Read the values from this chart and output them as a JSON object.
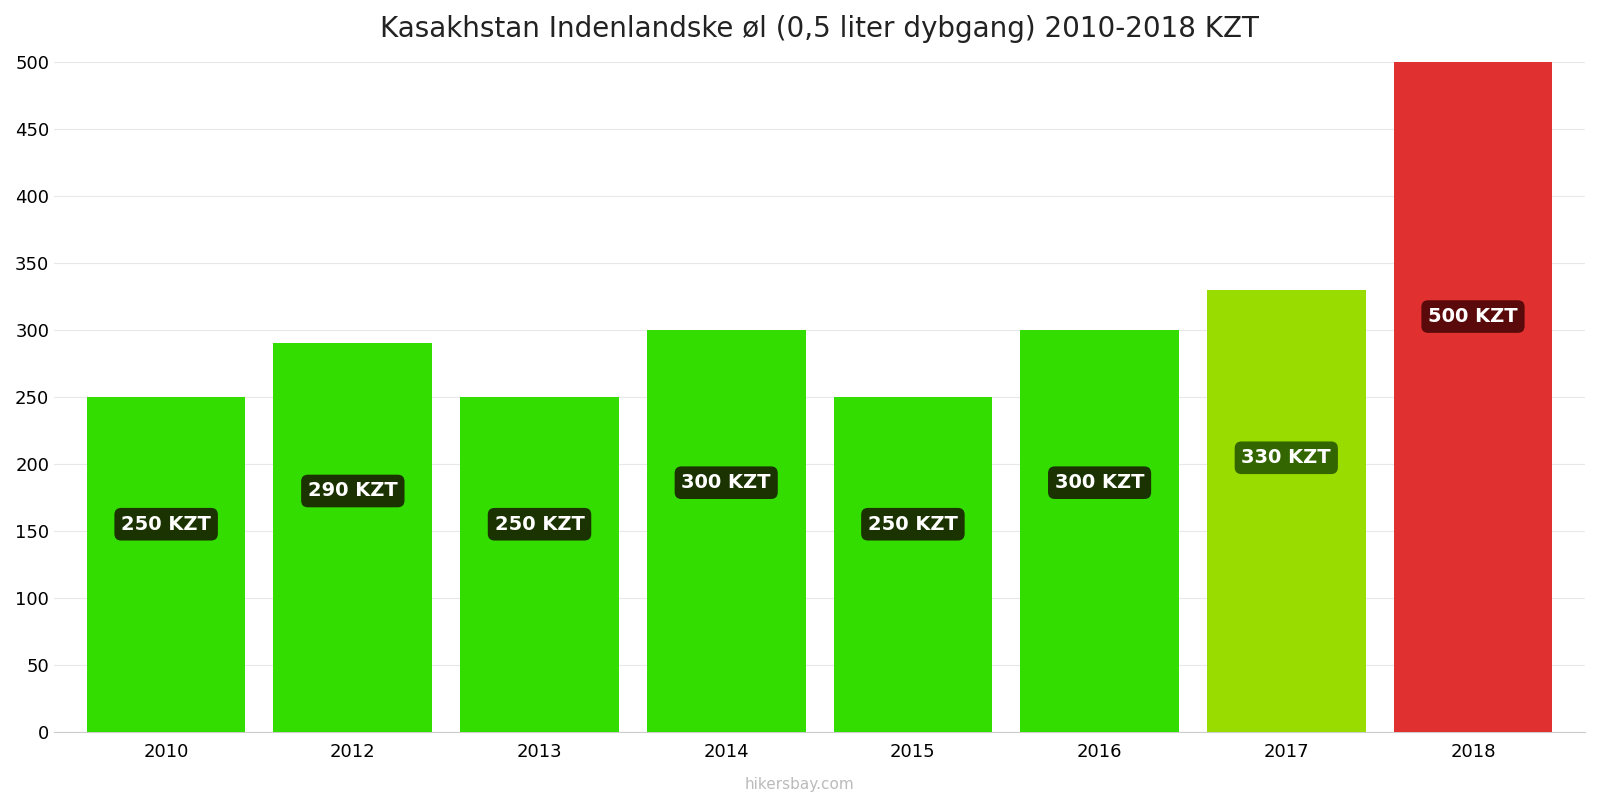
{
  "title": "Kasakhstan Indenlandske øl (0,5 liter dybgang) 2010-2018 KZT",
  "years": [
    2010,
    2012,
    2013,
    2014,
    2015,
    2016,
    2017,
    2018
  ],
  "values": [
    250,
    290,
    250,
    300,
    250,
    300,
    330,
    500
  ],
  "bar_colors": [
    "#33dd00",
    "#33dd00",
    "#33dd00",
    "#33dd00",
    "#33dd00",
    "#33dd00",
    "#99dd00",
    "#e03030"
  ],
  "label_bg_colors": [
    "#1a3300",
    "#1a3300",
    "#1a3300",
    "#1a3300",
    "#1a3300",
    "#1a3300",
    "#336600",
    "#5a0a0a"
  ],
  "label_text_color": "#ffffff",
  "ylim": [
    0,
    500
  ],
  "yticks": [
    0,
    50,
    100,
    150,
    200,
    250,
    300,
    350,
    400,
    450,
    500
  ],
  "title_fontsize": 20,
  "tick_fontsize": 13,
  "watermark": "hikersbay.com",
  "background_color": "#ffffff",
  "grid_color": "#e8e8e8"
}
